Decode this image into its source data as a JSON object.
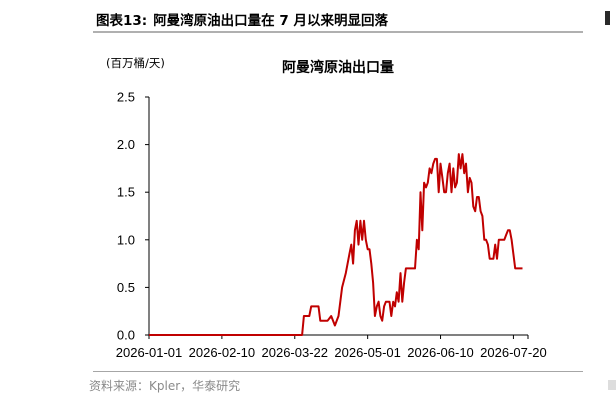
{
  "figure": {
    "number_label": "图表13:",
    "caption": "阿曼湾原油出口量在 7 月以来明显回落",
    "source": "资料来源：Kpler，华泰研究"
  },
  "chart_data": {
    "type": "line",
    "title": "阿曼湾原油出口量",
    "ylabel": "(百万桶/天)",
    "xlabel": "",
    "ylim": [
      0,
      2.5
    ],
    "y_ticks": [
      "0.0",
      "0.5",
      "1.0",
      "1.5",
      "2.0",
      "2.5"
    ],
    "x_ticks": [
      "2026-01-01",
      "2026-02-10",
      "2026-03-22",
      "2026-05-01",
      "2026-06-10",
      "2026-07-20"
    ],
    "grid": false,
    "series": [
      {
        "color": "#c00000",
        "x": [
          "2026-01-01",
          "2026-03-26",
          "2026-03-27",
          "2026-03-30",
          "2026-03-31",
          "2026-04-04",
          "2026-04-05",
          "2026-04-09",
          "2026-04-11",
          "2026-04-13",
          "2026-04-15",
          "2026-04-17",
          "2026-04-19",
          "2026-04-21",
          "2026-04-22",
          "2026-04-23",
          "2026-04-24",
          "2026-04-25",
          "2026-04-26",
          "2026-04-27",
          "2026-04-28",
          "2026-04-29",
          "2026-04-30",
          "2026-05-01",
          "2026-05-02",
          "2026-05-03",
          "2026-05-04",
          "2026-05-05",
          "2026-05-06",
          "2026-05-07",
          "2026-05-08",
          "2026-05-09",
          "2026-05-10",
          "2026-05-11",
          "2026-05-12",
          "2026-05-13",
          "2026-05-14",
          "2026-05-15",
          "2026-05-16",
          "2026-05-17",
          "2026-05-18",
          "2026-05-19",
          "2026-05-20",
          "2026-05-21",
          "2026-05-22",
          "2026-05-24",
          "2026-05-25",
          "2026-05-27",
          "2026-05-28",
          "2026-05-29",
          "2026-05-30",
          "2026-05-31",
          "2026-06-01",
          "2026-06-02",
          "2026-06-03",
          "2026-06-04",
          "2026-06-05",
          "2026-06-06",
          "2026-06-07",
          "2026-06-08",
          "2026-06-09",
          "2026-06-10",
          "2026-06-11",
          "2026-06-12",
          "2026-06-13",
          "2026-06-14",
          "2026-06-15",
          "2026-06-16",
          "2026-06-17",
          "2026-06-18",
          "2026-06-19",
          "2026-06-20",
          "2026-06-21",
          "2026-06-22",
          "2026-06-23",
          "2026-06-24",
          "2026-06-25",
          "2026-06-26",
          "2026-06-27",
          "2026-06-28",
          "2026-06-29",
          "2026-06-30",
          "2026-07-01",
          "2026-07-02",
          "2026-07-03",
          "2026-07-04",
          "2026-07-05",
          "2026-07-06",
          "2026-07-07",
          "2026-07-08",
          "2026-07-09",
          "2026-07-10",
          "2026-07-11",
          "2026-07-12",
          "2026-07-13",
          "2026-07-14",
          "2026-07-15",
          "2026-07-16",
          "2026-07-17",
          "2026-07-18",
          "2026-07-19",
          "2026-07-21",
          "2026-07-23",
          "2026-07-24",
          "2026-07-25"
        ],
        "values": [
          0,
          0,
          0.2,
          0.2,
          0.3,
          0.3,
          0.15,
          0.15,
          0.2,
          0.1,
          0.2,
          0.5,
          0.65,
          0.85,
          0.95,
          0.75,
          1.1,
          1.2,
          0.95,
          1.2,
          1.0,
          1.2,
          1.0,
          0.9,
          0.9,
          0.75,
          0.55,
          0.2,
          0.3,
          0.35,
          0.2,
          0.15,
          0.3,
          0.35,
          0.35,
          0.35,
          0.2,
          0.35,
          0.3,
          0.45,
          0.35,
          0.65,
          0.35,
          0.55,
          0.7,
          0.7,
          0.7,
          0.7,
          1.0,
          0.9,
          1.5,
          1.1,
          1.6,
          1.55,
          1.6,
          1.75,
          1.7,
          1.8,
          1.85,
          1.85,
          1.5,
          1.8,
          1.65,
          1.5,
          1.5,
          1.7,
          1.8,
          1.5,
          1.75,
          1.55,
          1.6,
          1.9,
          1.75,
          1.9,
          1.7,
          1.8,
          1.5,
          1.65,
          1.6,
          1.35,
          1.3,
          1.45,
          1.45,
          1.3,
          1.25,
          1.0,
          1.0,
          0.95,
          0.8,
          0.8,
          0.8,
          0.95,
          0.8,
          1.0,
          1.0,
          1.0,
          1.0,
          1.05,
          1.1,
          1.1,
          1.0,
          0.7,
          0.7,
          0.7,
          0.7
        ]
      }
    ]
  }
}
